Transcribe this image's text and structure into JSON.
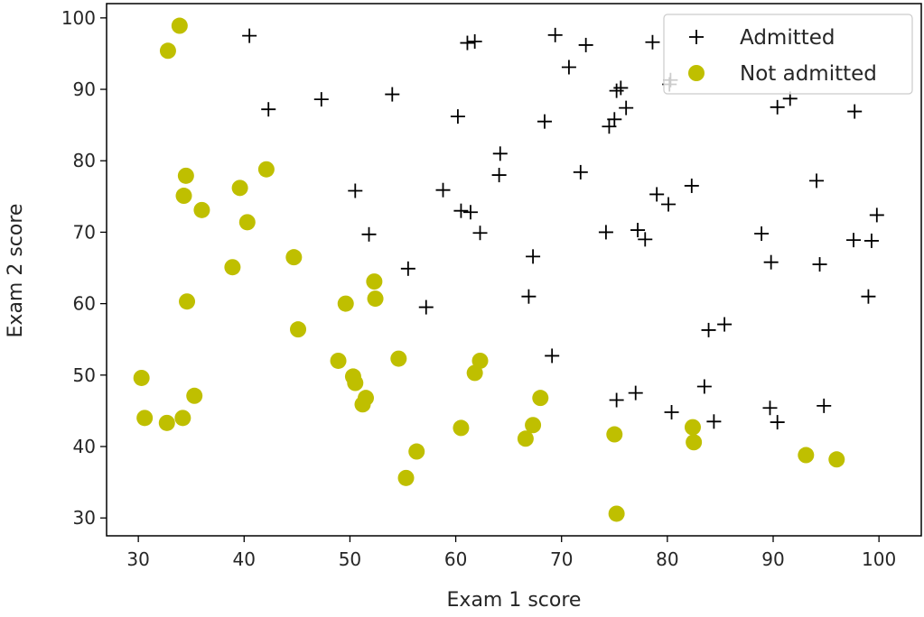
{
  "chart_data": {
    "type": "scatter",
    "title": "",
    "xlabel": "Exam 1 score",
    "ylabel": "Exam 2 score",
    "xlim": [
      27,
      104
    ],
    "ylim": [
      27.5,
      102
    ],
    "xticks": [
      30,
      40,
      50,
      60,
      70,
      80,
      90,
      100
    ],
    "yticks": [
      30,
      40,
      50,
      60,
      70,
      80,
      90,
      100
    ],
    "grid": false,
    "legend_position": "top-right",
    "series": [
      {
        "name": "Admitted",
        "marker": "plus",
        "color": "#000000",
        "points": [
          [
            40.5,
            97.5
          ],
          [
            42.3,
            87.2
          ],
          [
            47.3,
            88.6
          ],
          [
            54.0,
            89.3
          ],
          [
            60.2,
            86.2
          ],
          [
            61.1,
            96.5
          ],
          [
            61.8,
            96.7
          ],
          [
            69.4,
            97.6
          ],
          [
            70.7,
            93.1
          ],
          [
            72.3,
            96.2
          ],
          [
            68.4,
            85.5
          ],
          [
            74.5,
            84.8
          ],
          [
            75.0,
            85.8
          ],
          [
            75.2,
            89.8
          ],
          [
            75.6,
            90.2
          ],
          [
            76.1,
            87.4
          ],
          [
            78.6,
            96.6
          ],
          [
            80.3,
            91.3
          ],
          [
            80.2,
            90.7
          ],
          [
            90.4,
            87.5
          ],
          [
            91.6,
            88.7
          ],
          [
            97.7,
            86.9
          ],
          [
            64.2,
            81.0
          ],
          [
            64.1,
            78.0
          ],
          [
            71.8,
            78.4
          ],
          [
            50.5,
            75.8
          ],
          [
            58.8,
            75.9
          ],
          [
            60.5,
            73.0
          ],
          [
            61.4,
            72.8
          ],
          [
            51.8,
            69.7
          ],
          [
            62.3,
            69.9
          ],
          [
            74.2,
            70.0
          ],
          [
            77.2,
            70.3
          ],
          [
            77.9,
            69.0
          ],
          [
            79.0,
            75.3
          ],
          [
            80.1,
            73.9
          ],
          [
            82.3,
            76.5
          ],
          [
            88.9,
            69.8
          ],
          [
            94.1,
            77.2
          ],
          [
            99.8,
            72.4
          ],
          [
            97.6,
            68.9
          ],
          [
            99.3,
            68.8
          ],
          [
            55.5,
            64.9
          ],
          [
            57.2,
            59.5
          ],
          [
            66.9,
            61.0
          ],
          [
            67.3,
            66.6
          ],
          [
            89.8,
            65.8
          ],
          [
            94.4,
            65.5
          ],
          [
            99.0,
            61.0
          ],
          [
            83.9,
            56.3
          ],
          [
            85.4,
            57.1
          ],
          [
            69.1,
            52.7
          ],
          [
            75.2,
            46.5
          ],
          [
            77.0,
            47.5
          ],
          [
            80.4,
            44.8
          ],
          [
            83.5,
            48.4
          ],
          [
            84.4,
            43.5
          ],
          [
            89.7,
            45.4
          ],
          [
            90.4,
            43.4
          ],
          [
            94.8,
            45.7
          ]
        ]
      },
      {
        "name": "Not admitted",
        "marker": "circle",
        "color": "#bfbf00",
        "points": [
          [
            33.9,
            98.9
          ],
          [
            32.8,
            95.4
          ],
          [
            34.5,
            77.9
          ],
          [
            34.3,
            75.1
          ],
          [
            36.0,
            73.1
          ],
          [
            39.6,
            76.2
          ],
          [
            42.1,
            78.8
          ],
          [
            40.3,
            71.4
          ],
          [
            38.9,
            65.1
          ],
          [
            44.7,
            66.5
          ],
          [
            34.6,
            60.3
          ],
          [
            45.1,
            56.4
          ],
          [
            49.6,
            60.0
          ],
          [
            52.3,
            63.1
          ],
          [
            52.4,
            60.7
          ],
          [
            30.3,
            49.6
          ],
          [
            30.6,
            44.0
          ],
          [
            32.7,
            43.3
          ],
          [
            34.2,
            44.0
          ],
          [
            35.3,
            47.1
          ],
          [
            48.9,
            52.0
          ],
          [
            50.3,
            49.8
          ],
          [
            50.5,
            48.9
          ],
          [
            51.2,
            45.9
          ],
          [
            51.5,
            46.8
          ],
          [
            54.6,
            52.3
          ],
          [
            61.8,
            50.3
          ],
          [
            62.3,
            52.0
          ],
          [
            60.5,
            42.6
          ],
          [
            56.3,
            39.3
          ],
          [
            55.3,
            35.6
          ],
          [
            66.6,
            41.1
          ],
          [
            67.3,
            43.0
          ],
          [
            68.0,
            46.8
          ],
          [
            75.0,
            41.7
          ],
          [
            75.2,
            30.6
          ],
          [
            82.4,
            42.7
          ],
          [
            82.5,
            40.6
          ],
          [
            93.1,
            38.8
          ],
          [
            96.0,
            38.2
          ]
        ]
      }
    ]
  }
}
